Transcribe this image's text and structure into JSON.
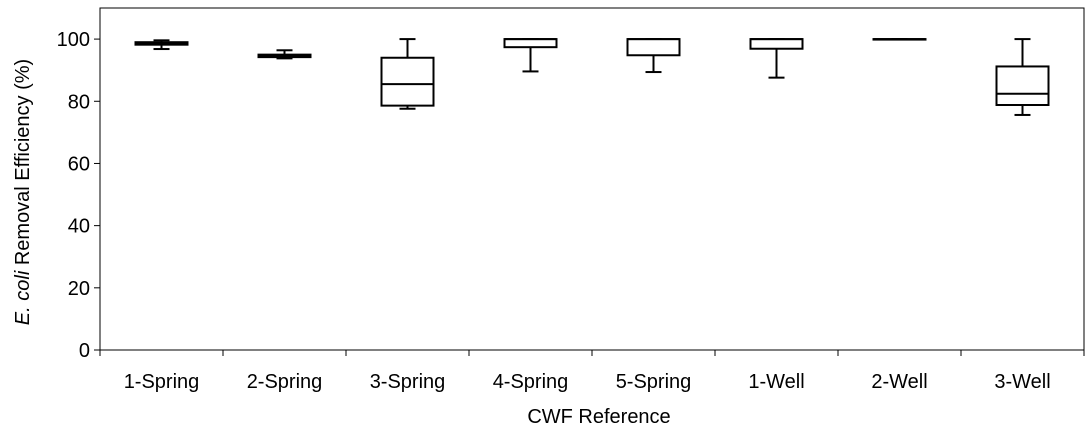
{
  "chart_data": {
    "type": "boxplot",
    "xlabel": "CWF Reference",
    "ylabel_italic": "E. coli",
    "ylabel_rest": " Removal  Efficiency (%)",
    "ylim": [
      0,
      110
    ],
    "yticks": [
      "0",
      "20",
      "40",
      "60",
      "80",
      "100"
    ],
    "categories": [
      "1-Spring",
      "2-Spring",
      "3-Spring",
      "4-Spring",
      "5-Spring",
      "1-Well",
      "2-Well",
      "3-Well"
    ],
    "boxes": [
      {
        "min": 96.8,
        "q1": 98.2,
        "median": 98.6,
        "q3": 99.0,
        "max": 99.6
      },
      {
        "min": 93.8,
        "q1": 94.2,
        "median": 94.6,
        "q3": 95.0,
        "max": 96.4
      },
      {
        "min": 77.6,
        "q1": 78.6,
        "median": 85.5,
        "q3": 94.0,
        "max": 100
      },
      {
        "min": 89.6,
        "q1": 97.4,
        "median": 100,
        "q3": 100,
        "max": 100
      },
      {
        "min": 89.4,
        "q1": 94.8,
        "median": 100,
        "q3": 100,
        "max": 100
      },
      {
        "min": 87.6,
        "q1": 96.9,
        "median": 100,
        "q3": 100,
        "max": 100
      },
      {
        "min": 100,
        "q1": 100,
        "median": 100,
        "q3": 100,
        "max": 100
      },
      {
        "min": 75.6,
        "q1": 78.8,
        "median": 82.4,
        "q3": 91.2,
        "max": 100
      }
    ],
    "color": "#000000"
  }
}
